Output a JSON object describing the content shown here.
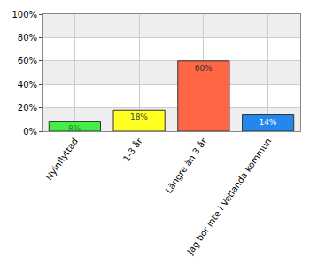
{
  "chart_data": {
    "type": "bar",
    "categories": [
      "Nyinflyttad",
      "1-3 år",
      "Längre än 3 år",
      "Jag bor inte i Vetlanda kommun"
    ],
    "values": [
      8,
      18,
      60,
      14
    ],
    "value_labels": [
      "8%",
      "18%",
      "60%",
      "14%"
    ],
    "colors": [
      "#44ee44",
      "#ffff22",
      "#ff6644",
      "#2288ee"
    ],
    "data_labels": true,
    "ylim": [
      0,
      100
    ],
    "yticks": [
      {
        "value": 0,
        "label": "0%"
      },
      {
        "value": 20,
        "label": "20%"
      },
      {
        "value": 40,
        "label": "40%"
      },
      {
        "value": 60,
        "label": "60%"
      },
      {
        "value": 80,
        "label": "80%"
      },
      {
        "value": 100,
        "label": "100%"
      }
    ],
    "grid": true
  }
}
